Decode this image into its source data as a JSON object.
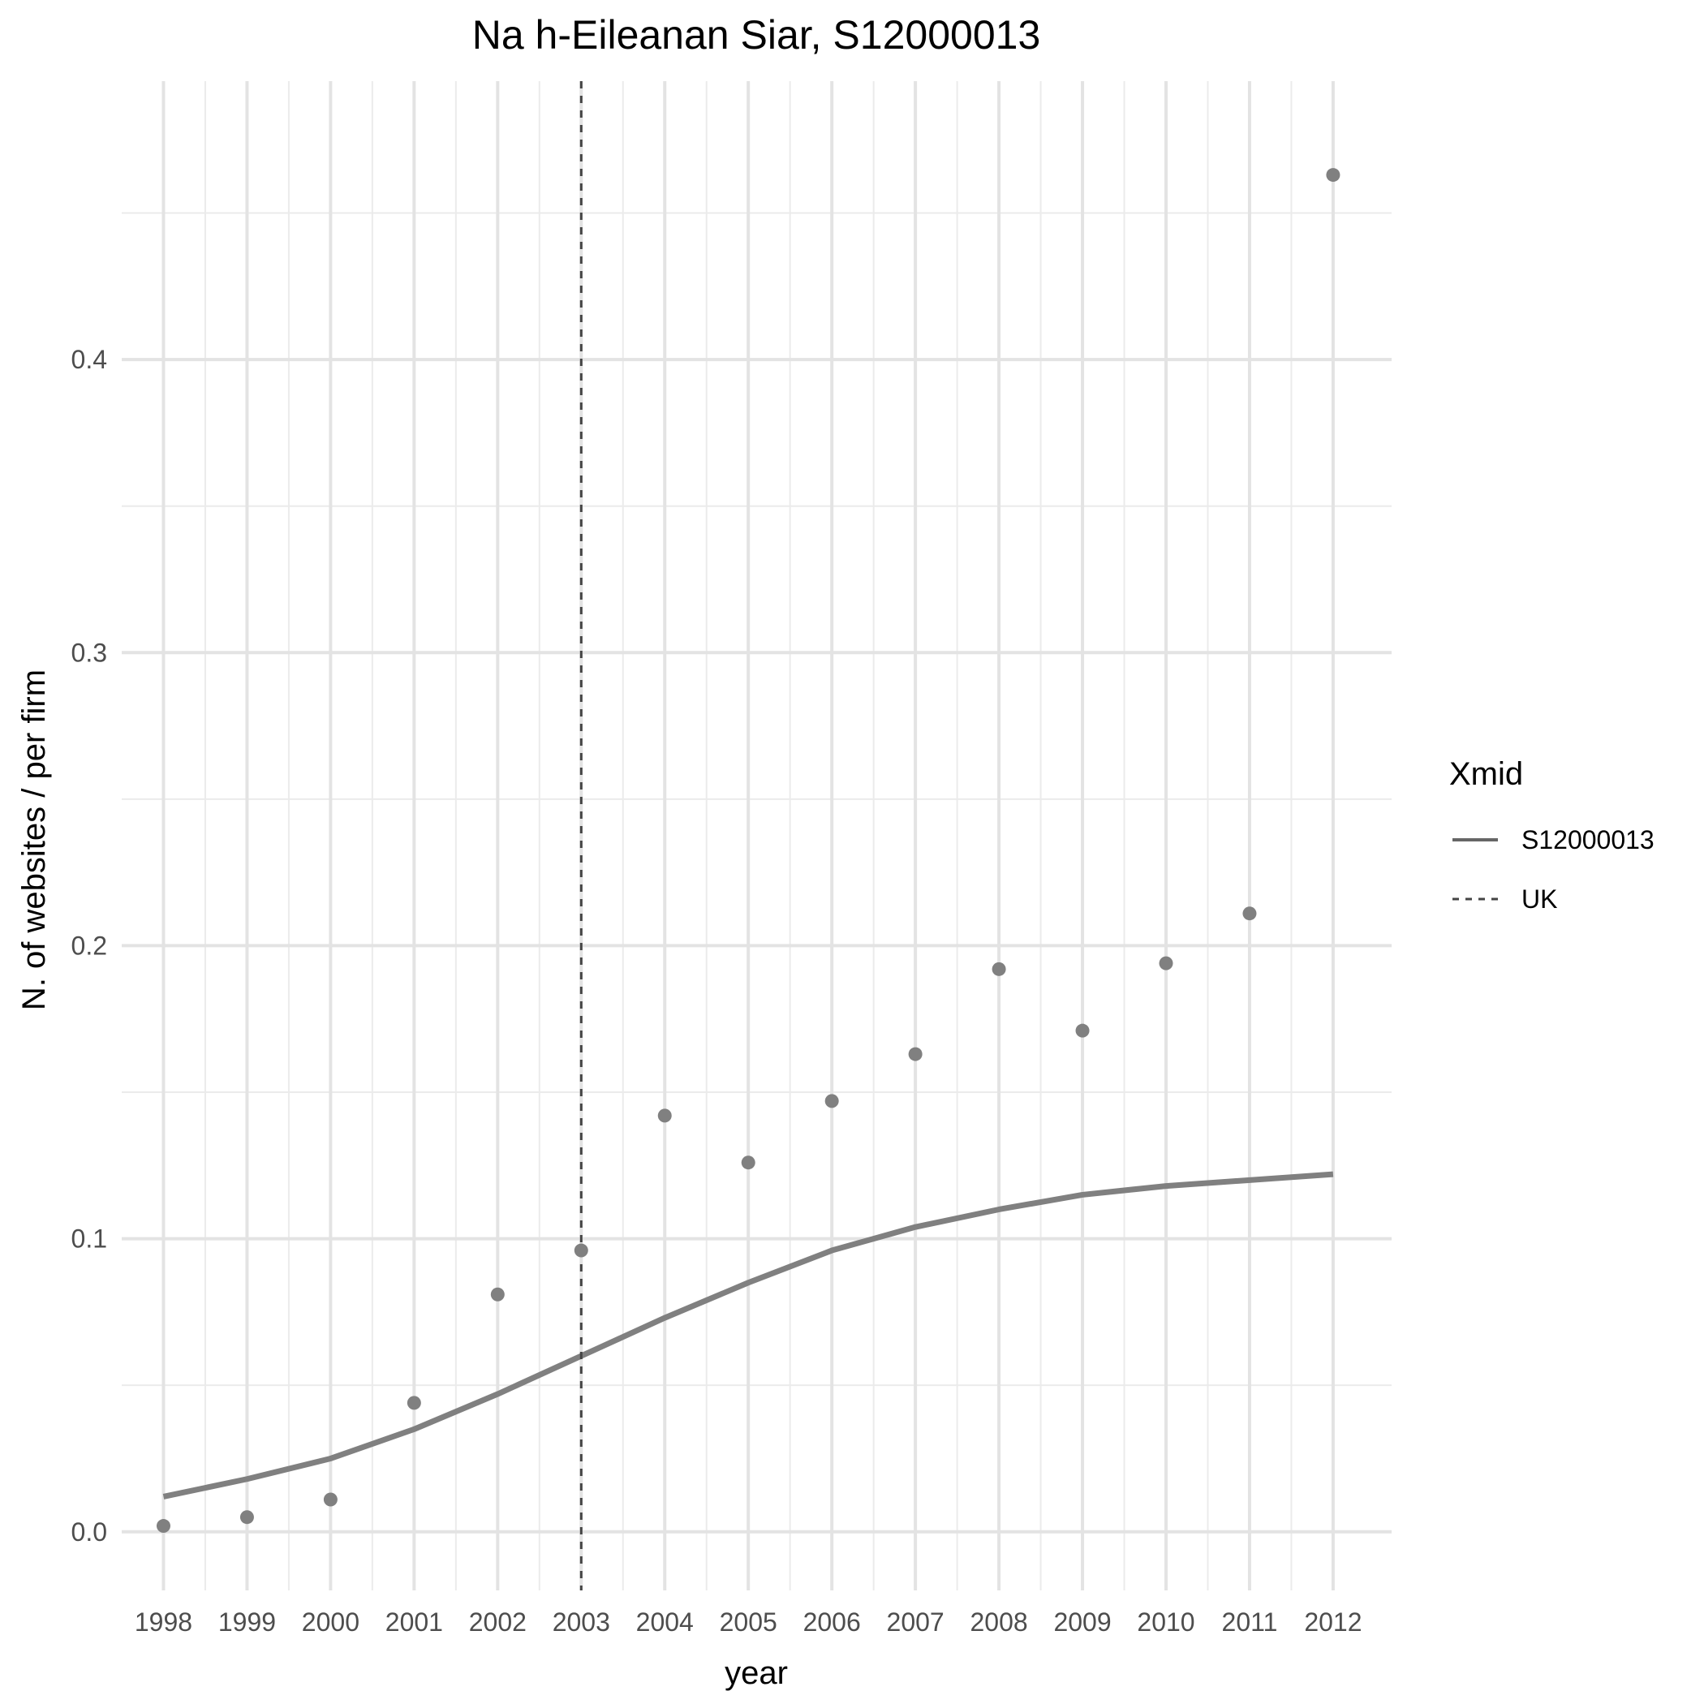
{
  "chart_data": {
    "type": "scatter",
    "title": "Na h-Eileanan Siar, S12000013",
    "xlabel": "year",
    "ylabel": "N. of websites / per firm",
    "x": [
      1998,
      1999,
      2000,
      2001,
      2002,
      2003,
      2004,
      2005,
      2006,
      2007,
      2008,
      2009,
      2010,
      2011,
      2012
    ],
    "x_tick_labels": [
      "1998",
      "1999",
      "2000",
      "2001",
      "2002",
      "2003",
      "2004",
      "2005",
      "2006",
      "2007",
      "2008",
      "2009",
      "2010",
      "2011",
      "2012"
    ],
    "y_ticks": [
      0.0,
      0.1,
      0.2,
      0.3,
      0.4
    ],
    "y_tick_labels": [
      "0.0",
      "0.1",
      "0.2",
      "0.3",
      "0.4"
    ],
    "xlim": [
      1997.5,
      2012.7
    ],
    "ylim": [
      -0.02,
      0.495
    ],
    "grid": true,
    "points": {
      "values": [
        0.002,
        0.005,
        0.011,
        0.044,
        0.081,
        0.096,
        0.142,
        0.126,
        0.147,
        0.163,
        0.192,
        0.171,
        0.194,
        0.211,
        0.463
      ],
      "color": "#808080"
    },
    "series": [
      {
        "name": "S12000013",
        "line_style": "solid",
        "color": "#808080",
        "x": [
          1998,
          1999,
          2000,
          2001,
          2002,
          2003,
          2004,
          2005,
          2006,
          2007,
          2008,
          2009,
          2010,
          2011,
          2012
        ],
        "values": [
          0.012,
          0.018,
          0.025,
          0.035,
          0.047,
          0.06,
          0.073,
          0.085,
          0.096,
          0.104,
          0.11,
          0.115,
          0.118,
          0.12,
          0.122
        ]
      }
    ],
    "reference_lines": [
      {
        "name": "UK",
        "orientation": "vertical",
        "x": 2003,
        "line_style": "dashed",
        "color": "#444444"
      }
    ],
    "legend": {
      "title": "Xmid",
      "position": "right",
      "entries": [
        {
          "label": "S12000013",
          "line_style": "solid"
        },
        {
          "label": "UK",
          "line_style": "dashed"
        }
      ]
    }
  }
}
